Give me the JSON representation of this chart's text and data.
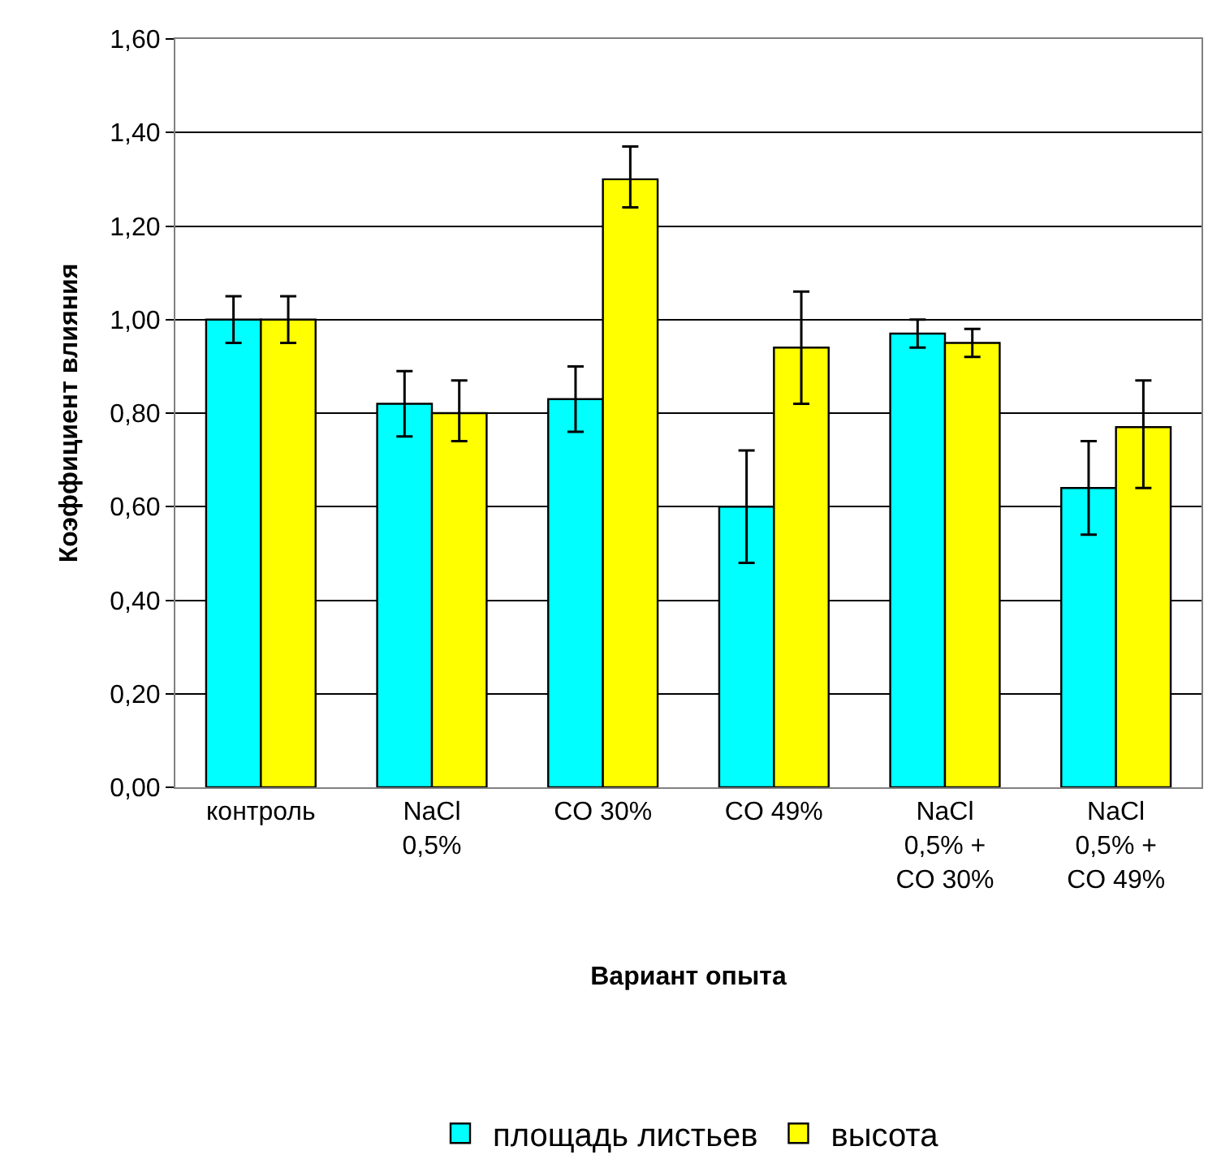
{
  "chart_data": {
    "type": "bar",
    "xlabel": "Вариант опыта",
    "ylabel": "Коэффициент влияния",
    "categories": [
      "контроль",
      "NaCl\n0,5%",
      "CO 30%",
      "CO 49%",
      "NaCl\n0,5% +\nCO 30%",
      "NaCl\n0,5% +\nCO 49%"
    ],
    "series": [
      {
        "name": "площадь листьев",
        "color": "#00ffff",
        "values": [
          1.0,
          0.82,
          0.83,
          0.6,
          0.97,
          0.64
        ],
        "errors": [
          0.05,
          0.07,
          0.07,
          0.12,
          0.03,
          0.1
        ]
      },
      {
        "name": "высота",
        "color": "#ffff00",
        "values": [
          1.0,
          0.8,
          1.3,
          0.94,
          0.95,
          0.77
        ],
        "errors": [
          0.05,
          [
            0.74,
            0.87
          ],
          [
            1.24,
            1.37
          ],
          0.12,
          0.03,
          [
            0.64,
            0.87
          ]
        ]
      }
    ],
    "ylim": [
      0,
      1.6
    ],
    "yticks": [
      {
        "value": 0,
        "label": "0,00"
      },
      {
        "value": 0.2,
        "label": "0,20"
      },
      {
        "value": 0.4,
        "label": "0,40"
      },
      {
        "value": 0.6,
        "label": "0,60"
      },
      {
        "value": 0.8,
        "label": "0,80"
      },
      {
        "value": 1.0,
        "label": "1,00"
      },
      {
        "value": 1.2,
        "label": "1,20"
      },
      {
        "value": 1.4,
        "label": "1,40"
      },
      {
        "value": 1.6,
        "label": "1,60"
      }
    ],
    "grid": "y",
    "legend": "bottom"
  }
}
